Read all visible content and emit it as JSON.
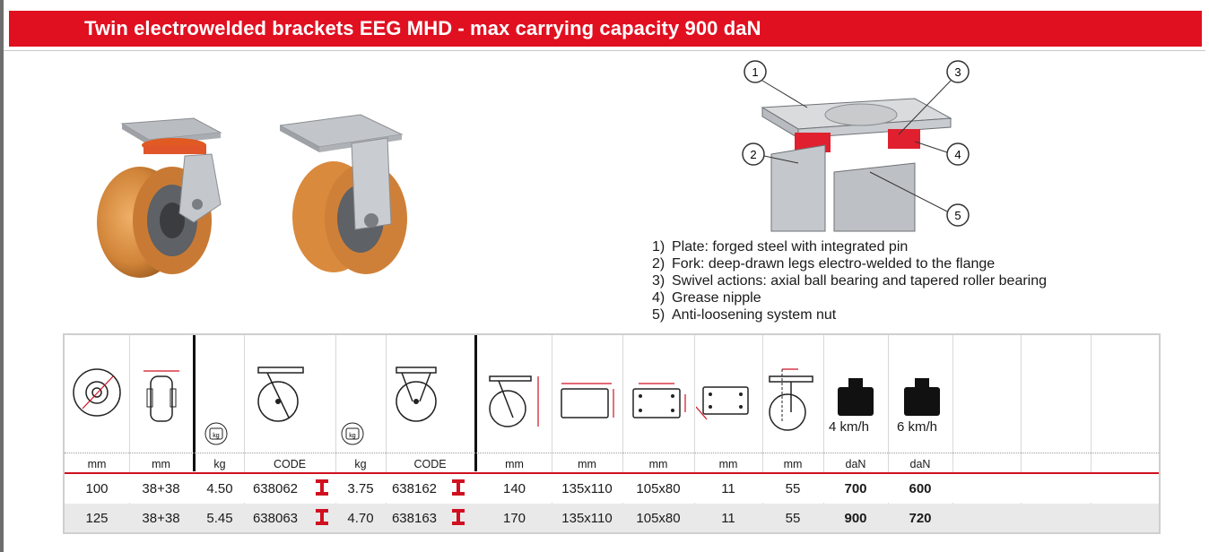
{
  "title": "Twin electrowelded brackets EEG MHD - max carrying capacity 900 daN",
  "diagram": {
    "callouts": [
      "1",
      "2",
      "3",
      "4",
      "5"
    ]
  },
  "features": [
    {
      "num": "1)",
      "text": "Plate: forged steel with integrated pin"
    },
    {
      "num": "2)",
      "text": "Fork:  deep-drawn legs electro-welded to the flange"
    },
    {
      "num": "3)",
      "text": "Swivel actions: axial ball bearing and tapered roller bearing"
    },
    {
      "num": "4)",
      "text": "Grease nipple"
    },
    {
      "num": "5)",
      "text": "Anti-loosening system nut"
    }
  ],
  "table": {
    "weight_icon_label": "kg",
    "speed_labels": [
      "4 km/h",
      "6 km/h"
    ],
    "units": [
      "mm",
      "mm",
      "kg",
      "CODE",
      "kg",
      "CODE",
      "mm",
      "mm",
      "mm",
      "mm",
      "mm",
      "daN",
      "daN"
    ],
    "rows": [
      {
        "diameter": "100",
        "width": "38+38",
        "swivel_kg": "4.50",
        "swivel_code": "638062",
        "fixed_kg": "3.75",
        "fixed_code": "638162",
        "height": "140",
        "plate": "135x110",
        "holes": "105x80",
        "bolt": "11",
        "offset": "55",
        "load_4": "700",
        "load_6": "600"
      },
      {
        "diameter": "125",
        "width": "38+38",
        "swivel_kg": "5.45",
        "swivel_code": "638063",
        "fixed_kg": "4.70",
        "fixed_code": "638163",
        "height": "170",
        "plate": "135x110",
        "holes": "105x80",
        "bolt": "11",
        "offset": "55",
        "load_4": "900",
        "load_6": "720"
      }
    ]
  },
  "colors": {
    "brand_red": "#e01020",
    "wheel_orange": "#d98a3d",
    "row_alt": "#e9e9ea"
  }
}
